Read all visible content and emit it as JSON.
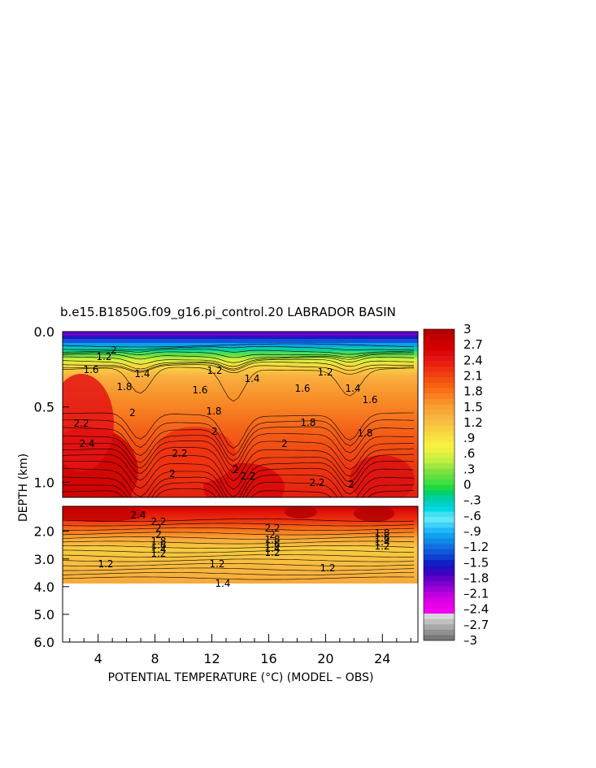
{
  "chart_data": {
    "type": "heatmap",
    "title": "b.e15.B1850G.f09_g16.pi_control.20 LABRADOR BASIN",
    "xlabel": "POTENTIAL TEMPERATURE (°C) (MODEL – OBS)",
    "ylabel": "DEPTH (km)",
    "xlim": [
      1.5,
      26.5
    ],
    "x_ticks": [
      4,
      8,
      12,
      16,
      20,
      24
    ],
    "x_tick_labels": [
      "4",
      "8",
      "12",
      "16",
      "20",
      "24"
    ],
    "upper_panel": {
      "ylim": [
        0.0,
        1.1
      ],
      "y_ticks": [
        0.0,
        0.5,
        1.0
      ],
      "y_tick_labels": [
        "0.0",
        "0.5",
        "1.0"
      ]
    },
    "lower_panel": {
      "ylim": [
        1.1,
        6.0
      ],
      "y_ticks": [
        2.0,
        3.0,
        4.0,
        5.0,
        6.0
      ],
      "y_tick_labels": [
        "2.0",
        "3.0",
        "4.0",
        "5.0",
        "6.0"
      ],
      "data_bottom_depth": 3.9
    },
    "colorbar": {
      "vmin": -3.0,
      "vmax": 3.0,
      "step": 0.15,
      "labels": [
        "3",
        "2.7",
        "2.4",
        "2.1",
        "1.8",
        "1.5",
        "1.2",
        ".9",
        ".6",
        ".3",
        "0",
        "–.3",
        "–.6",
        "–.9",
        "–1.2",
        "–1.5",
        "–1.8",
        "–2.1",
        "–2.4",
        "–2.7",
        "–3"
      ],
      "label_values": [
        3.0,
        2.7,
        2.4,
        2.1,
        1.8,
        1.5,
        1.2,
        0.9,
        0.6,
        0.3,
        0.0,
        -0.3,
        -0.6,
        -0.9,
        -1.2,
        -1.5,
        -1.8,
        -2.1,
        -2.4,
        -2.7,
        -3.0
      ],
      "colors_top_to_bottom": [
        "#b00000",
        "#c00000",
        "#cc0000",
        "#d40000",
        "#dc0a0a",
        "#e41414",
        "#e82010",
        "#ee3010",
        "#f04010",
        "#f45010",
        "#f66010",
        "#f87018",
        "#f88020",
        "#f89028",
        "#f8a030",
        "#f8a838",
        "#f8b440",
        "#f8c040",
        "#f8cc40",
        "#f8d840",
        "#f8e440",
        "#f8f040",
        "#f0f040",
        "#d8f040",
        "#c0f040",
        "#a0e840",
        "#80e040",
        "#60e040",
        "#40e040",
        "#20d840",
        "#00d070",
        "#00d0a0",
        "#00d0c8",
        "#00d8e0",
        "#40e0f0",
        "#60e8f8",
        "#40d0f8",
        "#20b8f8",
        "#10a0f0",
        "#1088e8",
        "#1070e0",
        "#1058d8",
        "#1040d0",
        "#1020c8",
        "#2010c0",
        "#4000c0",
        "#6000c8",
        "#8000d0",
        "#a000d8",
        "#c000e0",
        "#d800e8",
        "#e800e8",
        "#f000f0",
        "#d8d8d8",
        "#c0c0c0",
        "#a8a8a8",
        "#909090",
        "#787878"
      ]
    },
    "contour_labels_upper": [
      "2",
      "1.2",
      "1.6",
      "1.4",
      "1.8",
      "1.6",
      "1.2",
      "1.4",
      "1.6",
      "1.2",
      "1.4",
      "1.6",
      "1.8",
      "2.2",
      "2",
      "1.8",
      "2.4",
      "2",
      "2",
      "2.2",
      "1.8",
      "2",
      "2",
      "2.2",
      "2.2",
      "2"
    ],
    "contour_labels_lower": [
      "2.4",
      "2.2",
      "2",
      "2",
      "1.8",
      "1.6",
      "1.4",
      "1.2",
      "2.2",
      "2",
      "1.8",
      "1.6",
      "1.4",
      "1.2",
      "1.8",
      "1.6",
      "1.4",
      "1.2",
      "1.2",
      "1.2",
      "1.2",
      "1.4"
    ]
  }
}
